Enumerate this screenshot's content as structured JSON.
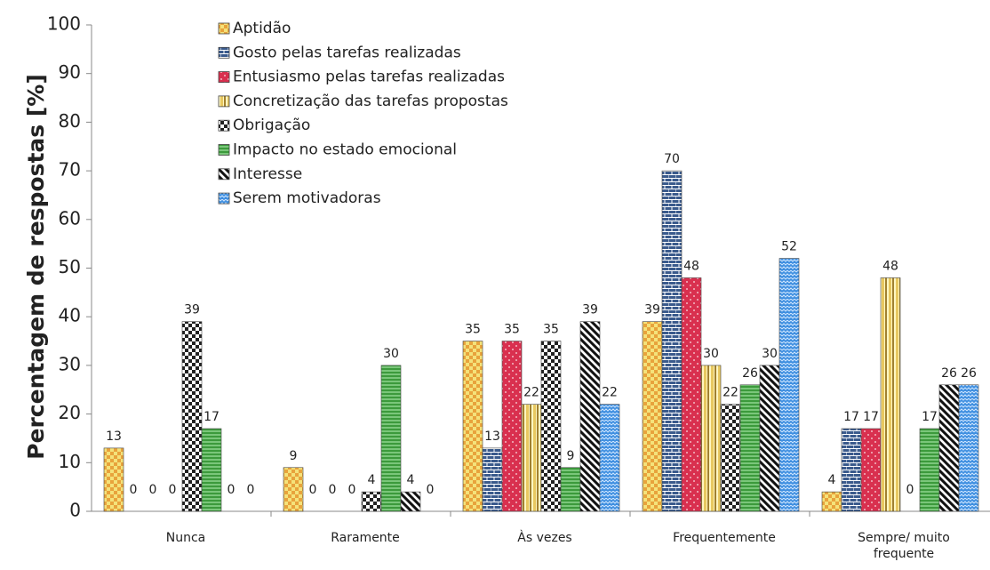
{
  "chart_data": {
    "type": "bar",
    "y_axis_label": "Percentagem de respostas [%]",
    "categories": [
      "Nunca",
      "Raramente",
      "Às vezes",
      "Frequentemente",
      "Sempre/ muito frequente"
    ],
    "series": [
      {
        "name": "Aptidão",
        "color": "#e8a33c",
        "values": [
          13,
          9,
          35,
          39,
          4
        ]
      },
      {
        "name": "Gosto pelas tarefas realizadas",
        "color": "#3a5a8c",
        "values": [
          0,
          0,
          13,
          70,
          17
        ]
      },
      {
        "name": "Entusiasmo pelas tarefas realizadas",
        "color": "#d9304f",
        "values": [
          0,
          0,
          35,
          48,
          17
        ]
      },
      {
        "name": "Concretização das tarefas propostas",
        "color": "#e8c860",
        "values": [
          0,
          0,
          22,
          30,
          48
        ]
      },
      {
        "name": "Obrigação",
        "color": "#222222",
        "values": [
          39,
          4,
          35,
          22,
          0
        ]
      },
      {
        "name": "Impacto no estado emocional",
        "color": "#3c9a3c",
        "values": [
          17,
          30,
          9,
          26,
          17
        ]
      },
      {
        "name": "Interesse",
        "color": "#111111",
        "values": [
          0,
          4,
          39,
          30,
          26
        ]
      },
      {
        "name": "Serem motivadoras",
        "color": "#3f8fe0",
        "values": [
          0,
          0,
          22,
          52,
          26
        ]
      }
    ],
    "ylim": [
      0,
      100
    ],
    "yticks": [
      0,
      10,
      20,
      30,
      40,
      50,
      60,
      70,
      80,
      90,
      100
    ],
    "grid": false
  }
}
